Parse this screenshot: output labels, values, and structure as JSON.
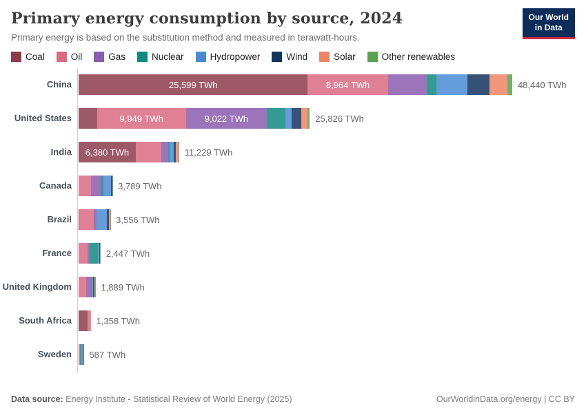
{
  "logo": {
    "line1": "Our World",
    "line2": "in Data",
    "bg_color": "#0d2c5a",
    "accent_color": "#d5293d"
  },
  "footer": {
    "source_label": "Data source:",
    "source_text": " Energy Institute - Statistical Review of World Energy (2025)",
    "link_text": "OurWorldinData.org/energy | CC BY"
  },
  "chart_data": {
    "type": "bar",
    "stacked": true,
    "orientation": "horizontal",
    "title": "Primary energy consumption by source, 2024",
    "subtitle": "Primary energy is based on the substitution method and measured in terawatt-hours.",
    "unit": "TWh",
    "xlim": [
      0,
      48440
    ],
    "grid": false,
    "legend_position": "top",
    "sources": [
      {
        "name": "Coal",
        "color": "#8d3c4c"
      },
      {
        "name": "Oil",
        "color": "#da6a82"
      },
      {
        "name": "Gas",
        "color": "#8a5cad"
      },
      {
        "name": "Nuclear",
        "color": "#0f8a7f"
      },
      {
        "name": "Hydropower",
        "color": "#4a8ad5"
      },
      {
        "name": "Wind",
        "color": "#12355f"
      },
      {
        "name": "Solar",
        "color": "#ee8464"
      },
      {
        "name": "Other renewables",
        "color": "#5ca14e"
      }
    ],
    "countries": [
      {
        "name": "China",
        "total": 48440,
        "total_label": "48,440 TWh",
        "values": [
          25599,
          8964,
          4300,
          1100,
          3500,
          2450,
          1980,
          547
        ],
        "segment_labels": [
          "25,599 TWh",
          "8,964 TWh",
          null,
          null,
          null,
          null,
          null,
          null
        ]
      },
      {
        "name": "United States",
        "total": 25826,
        "total_label": "25,826 TWh",
        "values": [
          2050,
          9949,
          9022,
          2100,
          650,
          1100,
          730,
          225
        ],
        "segment_labels": [
          null,
          "9,949 TWh",
          "9,022 TWh",
          null,
          null,
          null,
          null,
          null
        ]
      },
      {
        "name": "India",
        "total": 11229,
        "total_label": "11,229 TWh",
        "values": [
          6380,
          2880,
          770,
          150,
          420,
          290,
          300,
          39
        ],
        "segment_labels": [
          "6,380 TWh",
          null,
          null,
          null,
          null,
          null,
          null,
          null
        ]
      },
      {
        "name": "Canada",
        "total": 3789,
        "total_label": "3,789 TWh",
        "values": [
          30,
          1320,
          1170,
          280,
          840,
          120,
          19,
          10
        ],
        "segment_labels": [
          null,
          null,
          null,
          null,
          null,
          null,
          null,
          null
        ]
      },
      {
        "name": "Brazil",
        "total": 3556,
        "total_label": "3,556 TWh",
        "values": [
          40,
          1680,
          260,
          40,
          1150,
          220,
          120,
          46
        ],
        "segment_labels": [
          null,
          null,
          null,
          null,
          null,
          null,
          null,
          null
        ]
      },
      {
        "name": "France",
        "total": 2447,
        "total_label": "2,447 TWh",
        "values": [
          20,
          950,
          290,
          880,
          150,
          100,
          37,
          20
        ],
        "segment_labels": [
          null,
          null,
          null,
          null,
          null,
          null,
          null,
          null
        ]
      },
      {
        "name": "United Kingdom",
        "total": 1889,
        "total_label": "1,889 TWh",
        "values": [
          20,
          820,
          640,
          95,
          15,
          200,
          40,
          59
        ],
        "segment_labels": [
          null,
          null,
          null,
          null,
          null,
          null,
          null,
          null
        ]
      },
      {
        "name": "South Africa",
        "total": 1358,
        "total_label": "1,358 TWh",
        "values": [
          985,
          290,
          40,
          25,
          3,
          7,
          8,
          0
        ],
        "segment_labels": [
          null,
          null,
          null,
          null,
          null,
          null,
          null,
          null
        ]
      },
      {
        "name": "Sweden",
        "total": 587,
        "total_label": "587 TWh",
        "values": [
          5,
          125,
          5,
          130,
          165,
          100,
          7,
          50
        ],
        "segment_labels": [
          null,
          null,
          null,
          null,
          null,
          null,
          null,
          null
        ]
      }
    ]
  }
}
